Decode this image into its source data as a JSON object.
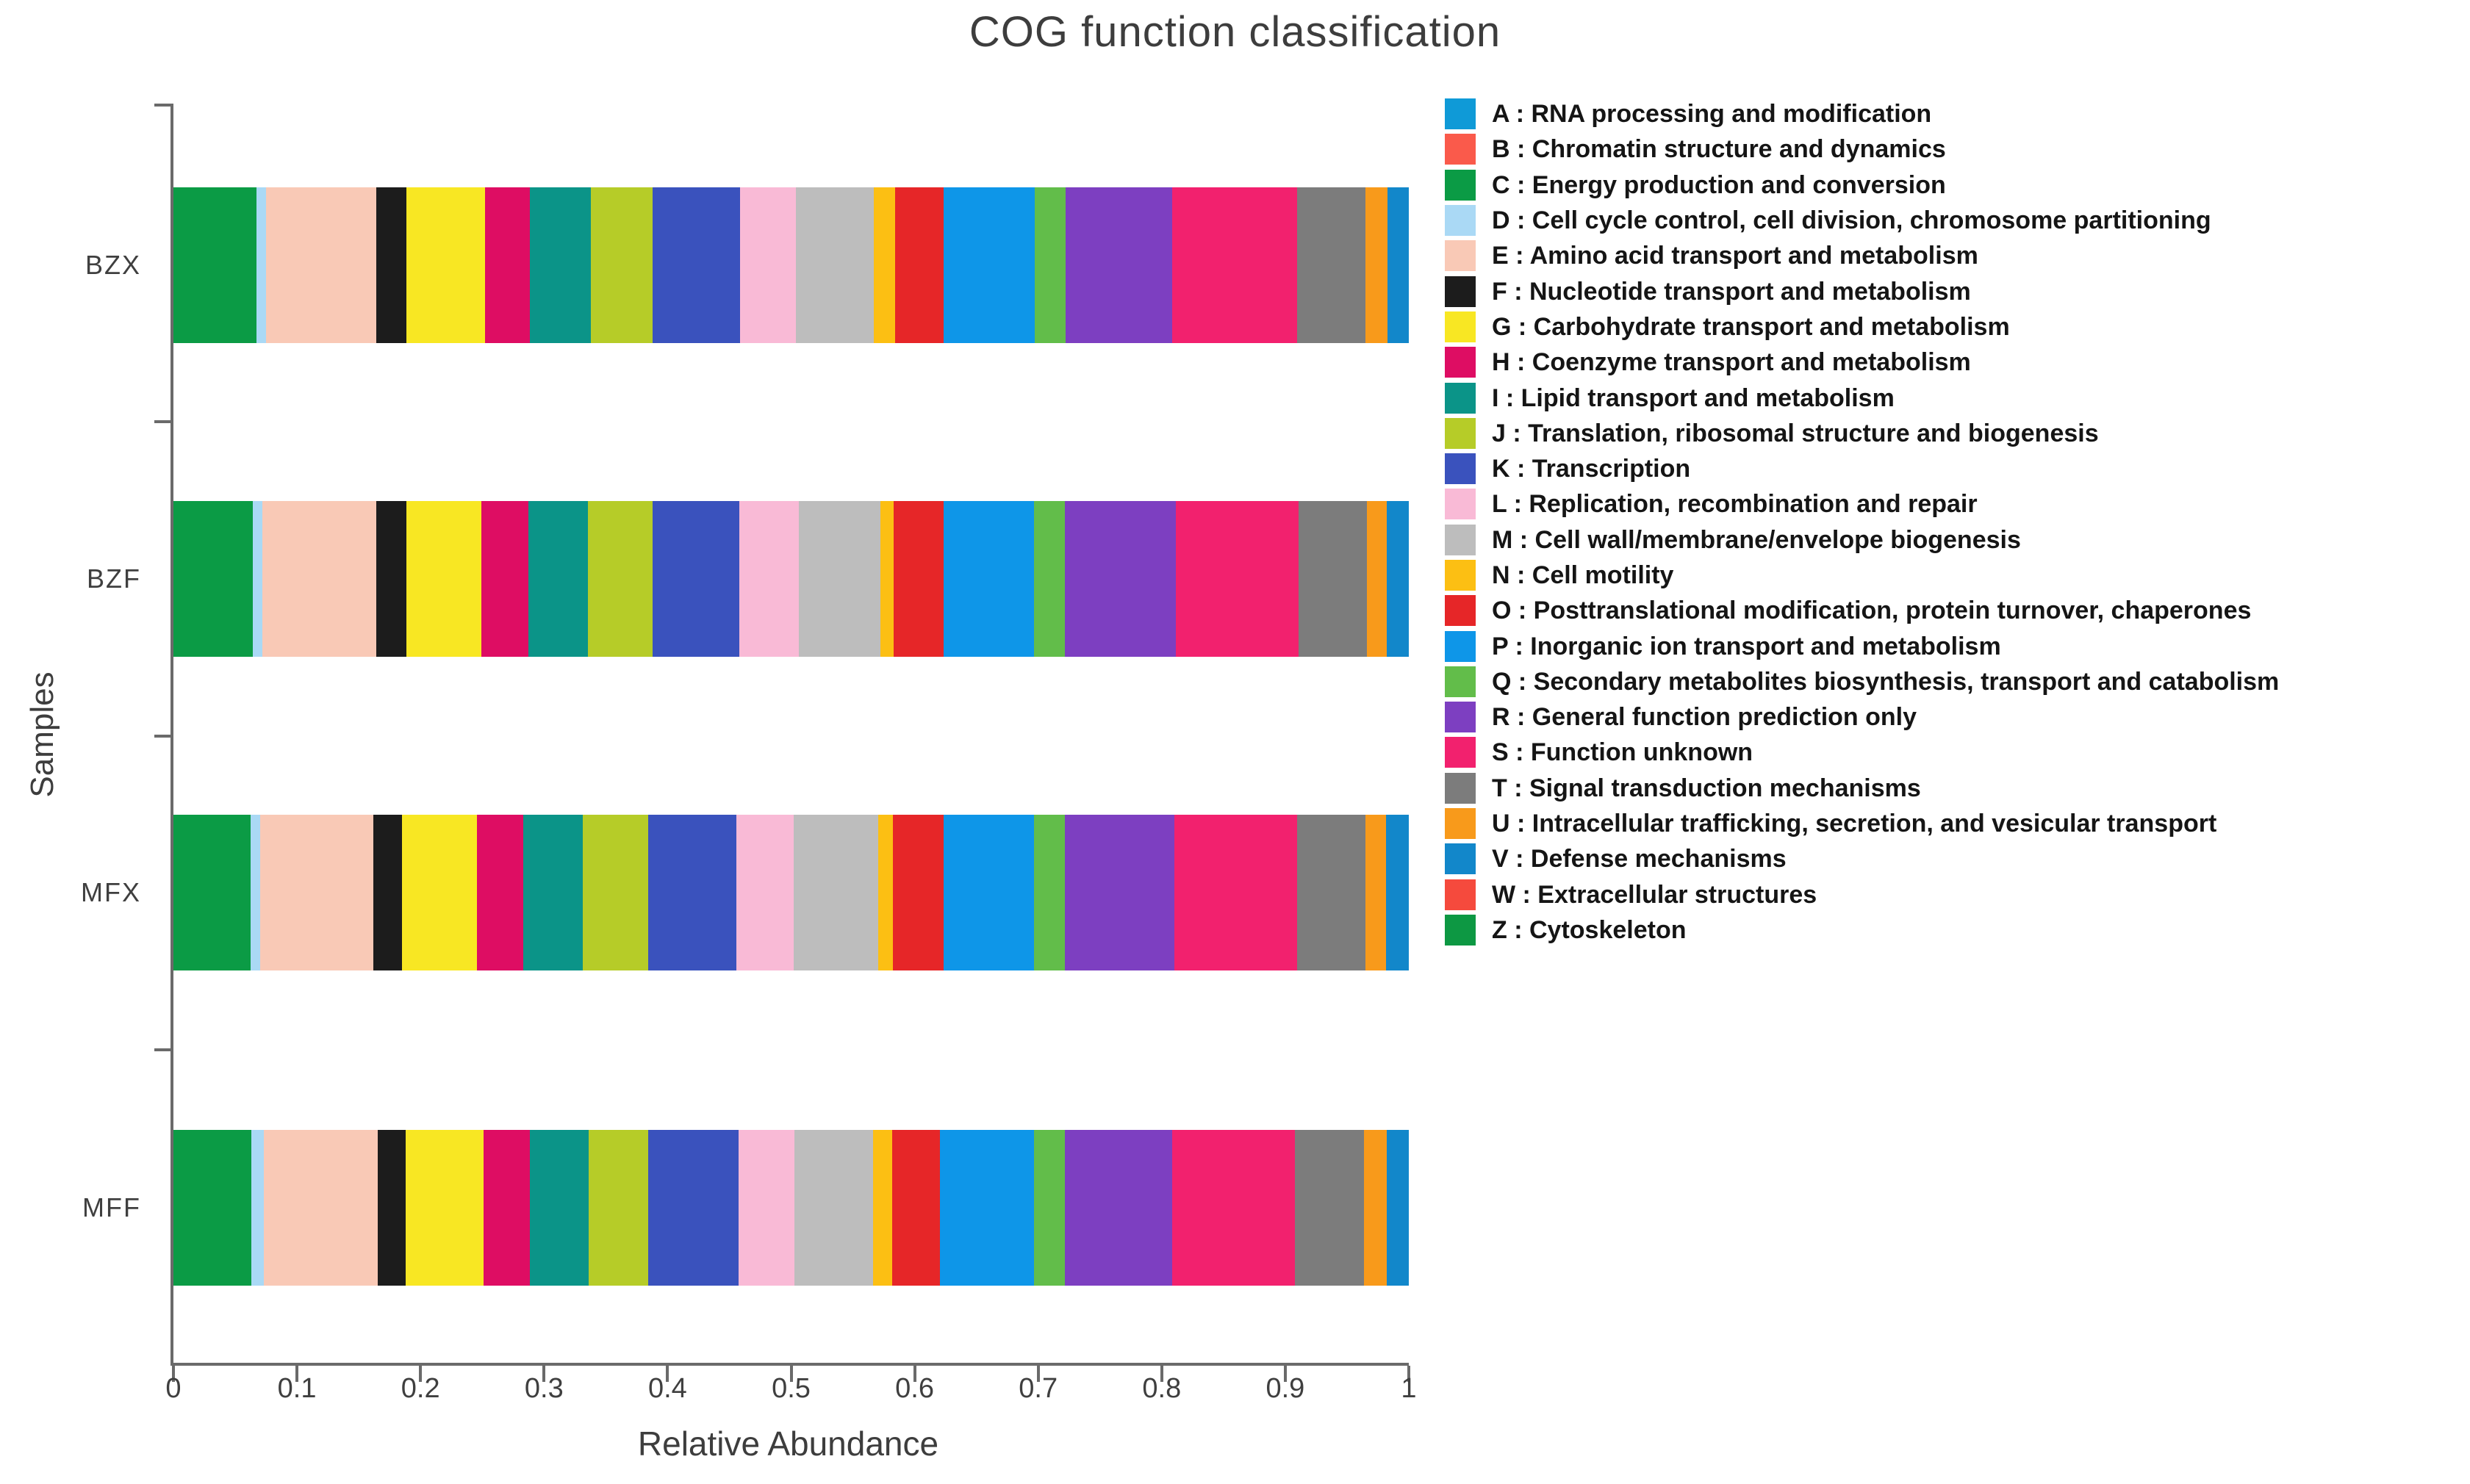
{
  "chart_data": {
    "type": "bar",
    "variant": "horizontal_stacked",
    "title": "COG function classification",
    "xlabel": "Relative Abundance",
    "ylabel": "Samples",
    "xlim": [
      0,
      1
    ],
    "x_ticks": [
      "0",
      "0.1",
      "0.2",
      "0.3",
      "0.4",
      "0.5",
      "0.6",
      "0.7",
      "0.8",
      "0.9",
      "1"
    ],
    "grid": false,
    "legend_position": "right",
    "samples": [
      "BZX",
      "BZF",
      "MFX",
      "MFF"
    ],
    "cog_categories": [
      {
        "code": "A",
        "label": "A : RNA processing and modification",
        "color": "#0f9ad7"
      },
      {
        "code": "B",
        "label": "B : Chromatin structure and dynamics",
        "color": "#fa5a4b"
      },
      {
        "code": "C",
        "label": "C : Energy production and conversion",
        "color": "#0b9b45"
      },
      {
        "code": "D",
        "label": "D : Cell cycle control, cell division, chromosome partitioning",
        "color": "#aad9f5"
      },
      {
        "code": "E",
        "label": "E : Amino acid transport and metabolism",
        "color": "#f9c9b6"
      },
      {
        "code": "F",
        "label": "F : Nucleotide transport and metabolism",
        "color": "#1c1c1c"
      },
      {
        "code": "G",
        "label": "G : Carbohydrate transport and metabolism",
        "color": "#f8e723"
      },
      {
        "code": "H",
        "label": "H : Coenzyme transport and metabolism",
        "color": "#de0d63"
      },
      {
        "code": "I",
        "label": "I : Lipid transport and metabolism",
        "color": "#0b9488"
      },
      {
        "code": "J",
        "label": "J : Translation, ribosomal structure and biogenesis",
        "color": "#b6cc28"
      },
      {
        "code": "K",
        "label": "K : Transcription",
        "color": "#3a52bd"
      },
      {
        "code": "L",
        "label": "L : Replication, recombination and repair",
        "color": "#f9bad6"
      },
      {
        "code": "M",
        "label": "M : Cell wall/membrane/envelope biogenesis",
        "color": "#bdbdbd"
      },
      {
        "code": "N",
        "label": "N : Cell motility",
        "color": "#fcbf13"
      },
      {
        "code": "O",
        "label": "O : Posttranslational modification, protein turnover, chaperones",
        "color": "#e62628"
      },
      {
        "code": "P",
        "label": "P : Inorganic ion transport and metabolism",
        "color": "#0e96e8"
      },
      {
        "code": "Q",
        "label": "Q : Secondary metabolites biosynthesis, transport and catabolism",
        "color": "#62bd4a"
      },
      {
        "code": "R",
        "label": "R : General function prediction only",
        "color": "#7d3fc1"
      },
      {
        "code": "S",
        "label": "S : Function unknown",
        "color": "#f2216e"
      },
      {
        "code": "T",
        "label": "T : Signal transduction mechanisms",
        "color": "#7c7c7c"
      },
      {
        "code": "U",
        "label": "U : Intracellular trafficking, secretion, and vesicular transport",
        "color": "#f89a1b"
      },
      {
        "code": "V",
        "label": "V : Defense mechanisms",
        "color": "#1287ca"
      },
      {
        "code": "W",
        "label": "W : Extracellular structures",
        "color": "#f54a3d"
      },
      {
        "code": "Z",
        "label": "Z : Cytoskeleton",
        "color": "#0d9843"
      }
    ],
    "values": {
      "BZX": [
        0,
        0,
        0.067,
        0.008,
        0.089,
        0.024,
        0.064,
        0.036,
        0.049,
        0.05,
        0.071,
        0.045,
        0.063,
        0.017,
        0.039,
        0.074,
        0.025,
        0.086,
        0.101,
        0.055,
        0.018,
        0.017,
        0,
        0
      ],
      "BZF": [
        0,
        0,
        0.064,
        0.008,
        0.092,
        0.024,
        0.061,
        0.038,
        0.048,
        0.052,
        0.07,
        0.048,
        0.066,
        0.011,
        0.04,
        0.073,
        0.025,
        0.09,
        0.099,
        0.055,
        0.016,
        0.018,
        0,
        0
      ],
      "MFX": [
        0,
        0,
        0.062,
        0.008,
        0.091,
        0.023,
        0.061,
        0.037,
        0.048,
        0.053,
        0.071,
        0.046,
        0.068,
        0.012,
        0.041,
        0.073,
        0.025,
        0.088,
        0.099,
        0.055,
        0.017,
        0.018,
        0,
        0
      ],
      "MFF": [
        0,
        0,
        0.063,
        0.01,
        0.092,
        0.023,
        0.063,
        0.037,
        0.048,
        0.048,
        0.073,
        0.045,
        0.064,
        0.015,
        0.039,
        0.076,
        0.025,
        0.087,
        0.099,
        0.056,
        0.018,
        0.018,
        0,
        0
      ]
    }
  }
}
